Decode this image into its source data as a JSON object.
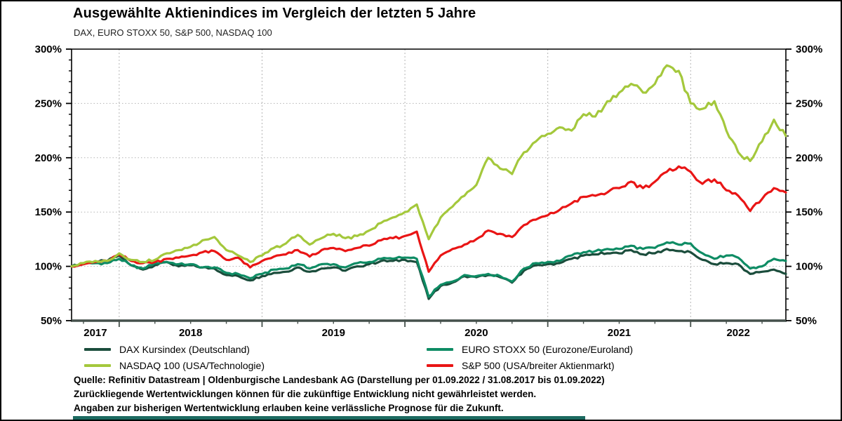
{
  "title": "Ausgewählte Aktienindices im Vergleich der letzten 5 Jahre",
  "subtitle": "DAX, EURO STOXX 50, S&P 500, NASDAQ 100",
  "chart_data": {
    "type": "line",
    "title": "Ausgewählte Aktienindices im Vergleich der letzten 5 Jahre",
    "x_axis": {
      "start": "31.08.2017",
      "end": "01.09.2022",
      "tick_labels": [
        "2017",
        "2018",
        "2019",
        "2020",
        "2021",
        "2022"
      ],
      "year_boundaries_months": [
        0,
        4,
        16,
        28,
        40,
        52,
        60
      ],
      "grid": "dashed-vertical-at-year-start"
    },
    "y_axis": {
      "min": 50,
      "max": 300,
      "major_step": 50,
      "minor_step": 10,
      "tick_labels": [
        "50%",
        "100%",
        "150%",
        "200%",
        "250%",
        "300%"
      ],
      "unit": "percent (indexed, 31.08.2017 = 100%)",
      "grid": "dotted-horizontal-at-major",
      "labels_on_both_sides": true
    },
    "x_unit": "monthly samples, Sep 2017 to Sep 2022 (61 points per series)",
    "series": [
      {
        "name": "DAX Kursindex (Deutschland)",
        "color": "#1b4d3c",
        "values": [
          100,
          103,
          104,
          105,
          110,
          101,
          97,
          101,
          104,
          100,
          101,
          99,
          98,
          92,
          91,
          87,
          91,
          94,
          95,
          99,
          95,
          98,
          99,
          96,
          100,
          102,
          105,
          105,
          106,
          104,
          70,
          82,
          85,
          91,
          90,
          92,
          90,
          85,
          96,
          101,
          102,
          103,
          107,
          110,
          111,
          112,
          112,
          115,
          111,
          112,
          116,
          114,
          113,
          106,
          102,
          103,
          102,
          93,
          95,
          97,
          93
        ]
      },
      {
        "name": "EURO STOXX 50 (Eurozone/Euroland)",
        "color": "#0e8c64",
        "values": [
          100,
          102,
          103,
          103,
          107,
          101,
          98,
          103,
          104,
          102,
          102,
          99,
          99,
          94,
          93,
          89,
          93,
          97,
          98,
          102,
          98,
          102,
          102,
          99,
          103,
          104,
          107,
          107,
          108,
          107,
          72,
          83,
          86,
          92,
          91,
          93,
          91,
          86,
          98,
          103,
          104,
          105,
          110,
          113,
          114,
          116,
          116,
          119,
          116,
          117,
          122,
          120,
          121,
          112,
          107,
          110,
          108,
          98,
          100,
          107,
          105
        ]
      },
      {
        "name": "S&P 500 (USA/breiter Aktienmarkt)",
        "color": "#e91515",
        "values": [
          100,
          102,
          104,
          105,
          111,
          105,
          103,
          104,
          107,
          108,
          110,
          113,
          114,
          106,
          108,
          99,
          105,
          109,
          111,
          115,
          109,
          115,
          117,
          114,
          117,
          119,
          124,
          126,
          128,
          132,
          95,
          110,
          116,
          120,
          125,
          133,
          130,
          127,
          138,
          143,
          147,
          152,
          158,
          164,
          165,
          168,
          172,
          178,
          172,
          178,
          187,
          192,
          187,
          176,
          180,
          170,
          165,
          151,
          162,
          172,
          168
        ]
      },
      {
        "name": "NASDAQ 100 (USA/Technologie)",
        "color": "#a4c83c",
        "values": [
          100,
          103,
          105,
          105,
          112,
          106,
          104,
          106,
          112,
          115,
          118,
          124,
          127,
          115,
          110,
          104,
          110,
          117,
          121,
          129,
          120,
          126,
          130,
          126,
          128,
          133,
          140,
          145,
          150,
          157,
          125,
          145,
          155,
          165,
          175,
          200,
          190,
          185,
          205,
          215,
          222,
          228,
          225,
          240,
          238,
          252,
          260,
          268,
          260,
          268,
          285,
          280,
          250,
          245,
          252,
          225,
          205,
          197,
          215,
          235,
          220
        ]
      }
    ],
    "legend_position": "bottom"
  },
  "legend": {
    "items": [
      {
        "label": "DAX Kursindex (Deutschland)",
        "color": "#1b4d3c"
      },
      {
        "label": "EURO STOXX 50 (Eurozone/Euroland)",
        "color": "#0e8c64"
      },
      {
        "label": "NASDAQ 100 (USA/Technologie)",
        "color": "#a4c83c"
      },
      {
        "label": "S&P 500 (USA/breiter Aktienmarkt)",
        "color": "#e91515"
      }
    ]
  },
  "footer": {
    "source": "Quelle: Refinitiv Datastream | Oldenburgische Landesbank AG (Darstellung per 01.09.2022 / 31.08.2017 bis 01.09.2022)",
    "disclaimer1": "Zurückliegende Wertentwicklungen können für die zukünftige Entwicklung nicht gewährleistet werden.",
    "disclaimer2": "Angaben zur bisherigen Wertentwicklung erlauben keine verlässliche Prognose für die Zukunft."
  }
}
